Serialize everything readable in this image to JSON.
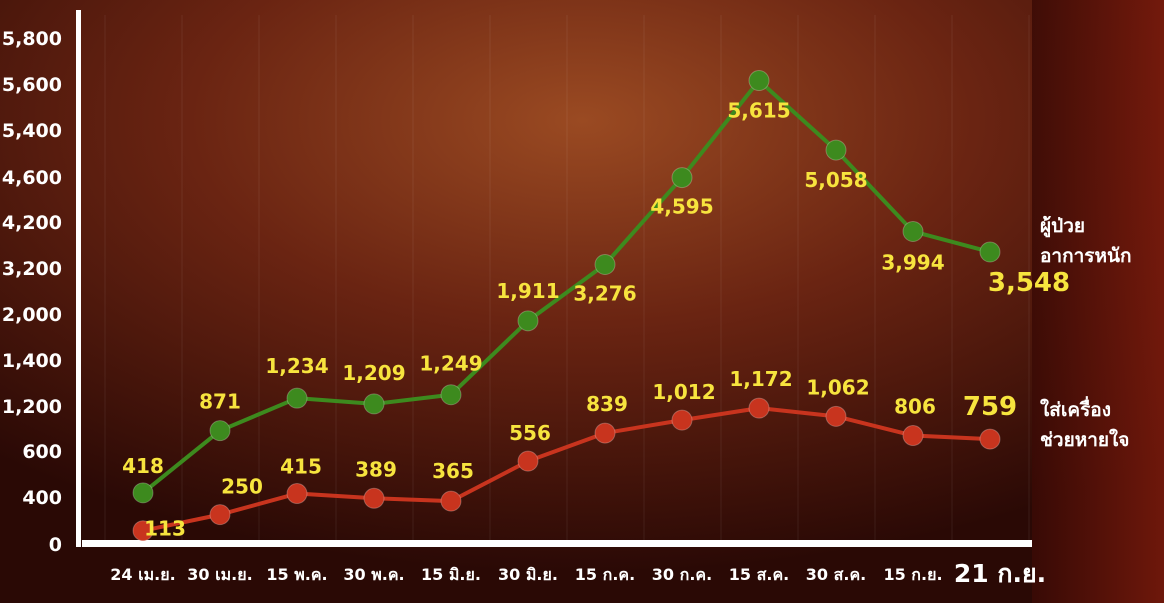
{
  "chart_data": {
    "type": "line",
    "categories": [
      "24 เม.ย.",
      "30 เม.ย.",
      "15 พ.ค.",
      "30 พ.ค.",
      "15 มิ.ย.",
      "30 มิ.ย.",
      "15 ก.ค.",
      "30 ก.ค.",
      "15 ส.ค.",
      "30 ส.ค.",
      "15 ก.ย.",
      "21 ก.ย."
    ],
    "y_tick_labels": [
      "0",
      "400",
      "600",
      "1,200",
      "1,400",
      "2,000",
      "3,200",
      "4,200",
      "4,600",
      "5,400",
      "5,600",
      "5,800"
    ],
    "series": [
      {
        "name": "ผู้ป่วยอาการหนัก",
        "legend_lines": [
          "ผู้ป่วย",
          "อาการหนัก"
        ],
        "color": "#3d8a1e",
        "values": [
          418,
          871,
          1234,
          1209,
          1249,
          1911,
          3276,
          4595,
          5615,
          5058,
          3994,
          3548
        ],
        "labels": [
          "418",
          "871",
          "1,234",
          "1,209",
          "1,249",
          "1,911",
          "3,276",
          "4,595",
          "5,615",
          "5,058",
          "3,994",
          "3,548"
        ]
      },
      {
        "name": "ใส่เครื่องช่วยหายใจ",
        "legend_lines": [
          "ใส่เครื่อง",
          "ช่วยหายใจ"
        ],
        "color": "#c8341e",
        "values": [
          113,
          250,
          415,
          389,
          365,
          556,
          839,
          1012,
          1172,
          1062,
          806,
          759
        ],
        "labels": [
          "113",
          "250",
          "415",
          "389",
          "365",
          "556",
          "839",
          "1,012",
          "1,172",
          "1,062",
          "806",
          "759"
        ]
      }
    ],
    "axis_scale": "non-linear (ticks unevenly spaced)",
    "grid": "vertical lines",
    "legend_placement": "right"
  },
  "colors": {
    "label_text": "#f7e43e",
    "axis_text": "#ffffff",
    "background_top": "#8a3a1a",
    "background_bottom": "#2a0905"
  }
}
